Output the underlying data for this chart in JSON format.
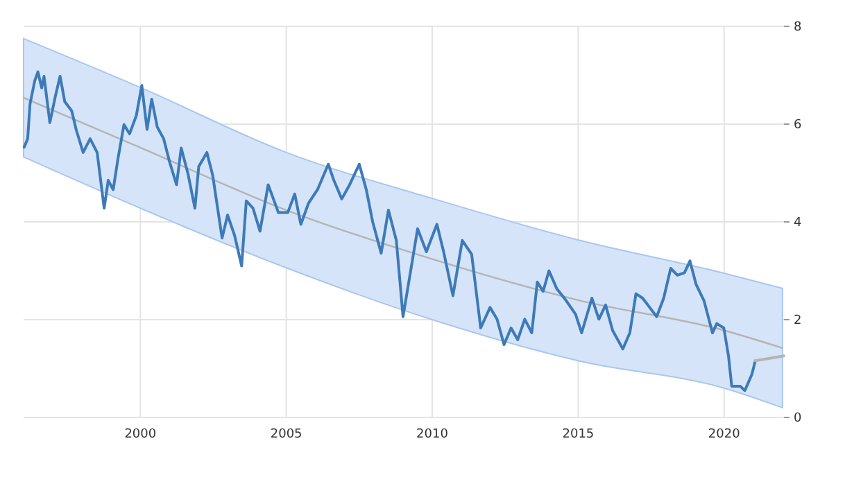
{
  "chart_data": {
    "type": "line",
    "xlim": [
      1996,
      2022.05
    ],
    "xticks": [
      2000,
      2005,
      2010,
      2015,
      2020
    ],
    "ylim": [
      0,
      8
    ],
    "yticks": [
      0,
      2,
      4,
      6,
      8
    ],
    "grid": true,
    "marker": "none",
    "line_style": "solid",
    "series": [
      {
        "color": "#b4b4b4",
        "x": [
          1996,
          2000,
          2005,
          2010,
          2015,
          2020,
          2022
        ],
        "values": [
          6.54,
          5.52,
          4.24,
          3.24,
          2.4,
          1.78,
          1.42
        ],
        "lower": [
          5.33,
          4.28,
          3.06,
          2.0,
          1.16,
          0.6,
          0.2
        ],
        "upper": [
          7.75,
          6.75,
          5.42,
          4.48,
          3.63,
          2.95,
          2.64
        ]
      },
      {
        "color": "#3d7ab8",
        "x": [
          1996.02,
          1996.14,
          1996.22,
          1996.38,
          1996.49,
          1996.62,
          1996.7,
          1996.9,
          1997.1,
          1997.25,
          1997.41,
          1997.65,
          1997.8,
          1998.04,
          1998.28,
          1998.52,
          1998.76,
          1998.9,
          1999.07,
          1999.23,
          1999.44,
          1999.63,
          1999.86,
          2000.05,
          2000.23,
          2000.39,
          2000.58,
          2000.8,
          2001.0,
          2001.24,
          2001.4,
          2001.63,
          2001.87,
          2002.0,
          2002.28,
          2002.48,
          2002.67,
          2002.8,
          2002.99,
          2003.23,
          2003.47,
          2003.63,
          2003.86,
          2004.1,
          2004.38,
          2004.73,
          2005.05,
          2005.29,
          2005.5,
          2005.76,
          2006.07,
          2006.44,
          2006.63,
          2006.9,
          2007.17,
          2007.5,
          2007.74,
          2007.96,
          2008.25,
          2008.5,
          2008.77,
          2009.0,
          2009.25,
          2009.5,
          2009.8,
          2010.16,
          2010.39,
          2010.71,
          2011.03,
          2011.35,
          2011.66,
          2011.98,
          2012.22,
          2012.46,
          2012.7,
          2012.93,
          2013.17,
          2013.41,
          2013.6,
          2013.8,
          2014.0,
          2014.27,
          2014.59,
          2014.91,
          2015.12,
          2015.47,
          2015.71,
          2015.94,
          2016.18,
          2016.53,
          2016.77,
          2016.98,
          2017.21,
          2017.45,
          2017.69,
          2017.93,
          2018.17,
          2018.4,
          2018.64,
          2018.83,
          2019.04,
          2019.31,
          2019.6,
          2019.75,
          2019.99,
          2020.15,
          2020.26,
          2020.55,
          2020.71,
          2020.95,
          2021.07
        ],
        "values": [
          5.53,
          5.7,
          6.41,
          6.88,
          7.07,
          6.74,
          6.98,
          6.03,
          6.6,
          6.98,
          6.46,
          6.27,
          5.89,
          5.42,
          5.7,
          5.42,
          4.28,
          4.85,
          4.66,
          5.28,
          5.99,
          5.8,
          6.17,
          6.79,
          5.89,
          6.51,
          5.94,
          5.7,
          5.23,
          4.76,
          5.51,
          4.99,
          4.28,
          5.13,
          5.42,
          4.95,
          4.19,
          3.67,
          4.14,
          3.72,
          3.1,
          4.43,
          4.28,
          3.81,
          4.76,
          4.19,
          4.19,
          4.57,
          3.95,
          4.38,
          4.66,
          5.18,
          4.85,
          4.47,
          4.76,
          5.18,
          4.66,
          4.0,
          3.36,
          4.24,
          3.62,
          2.06,
          2.96,
          3.86,
          3.39,
          3.95,
          3.39,
          2.49,
          3.62,
          3.34,
          1.83,
          2.25,
          2.01,
          1.49,
          1.83,
          1.59,
          2.01,
          1.73,
          2.77,
          2.58,
          3.0,
          2.63,
          2.39,
          2.11,
          1.73,
          2.44,
          2.01,
          2.3,
          1.78,
          1.4,
          1.73,
          2.53,
          2.44,
          2.25,
          2.06,
          2.44,
          3.05,
          2.91,
          2.96,
          3.2,
          2.72,
          2.39,
          1.73,
          1.92,
          1.83,
          1.26,
          0.64,
          0.64,
          0.55,
          0.88,
          1.16
        ]
      },
      {
        "color": "#b4b4b4",
        "x": [
          2021.07,
          2022.05
        ],
        "values": [
          1.16,
          1.26
        ]
      }
    ]
  }
}
